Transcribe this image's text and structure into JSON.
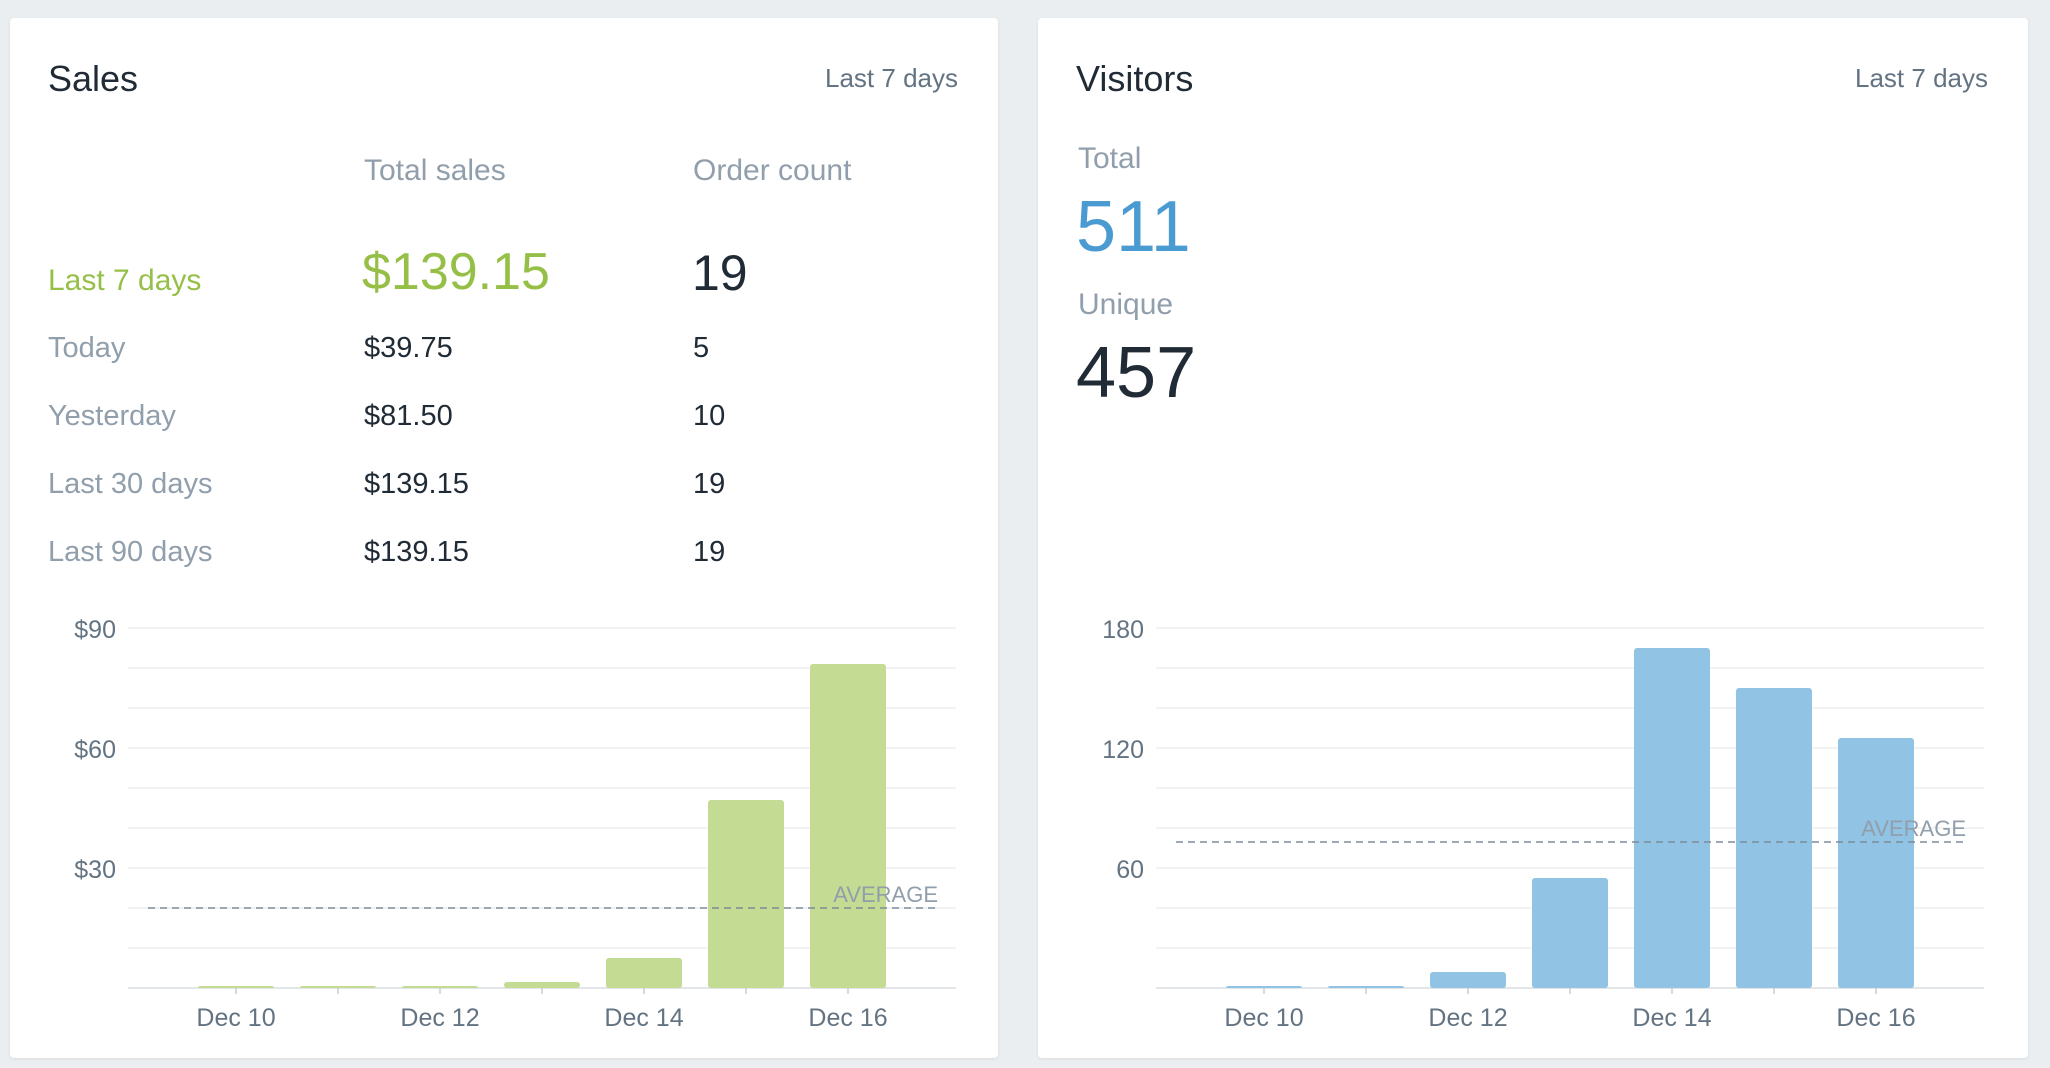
{
  "sales": {
    "title": "Sales",
    "range_link": "Last 7 days",
    "col_total_sales": "Total sales",
    "col_order_count": "Order count",
    "rows": [
      {
        "label": "Last 7 days",
        "total": "$139.15",
        "count": "19"
      },
      {
        "label": "Today",
        "total": "$39.75",
        "count": "5"
      },
      {
        "label": "Yesterday",
        "total": "$81.50",
        "count": "10"
      },
      {
        "label": "Last 30 days",
        "total": "$139.15",
        "count": "19"
      },
      {
        "label": "Last 90 days",
        "total": "$139.15",
        "count": "19"
      }
    ]
  },
  "visitors": {
    "title": "Visitors",
    "range_link": "Last 7 days",
    "total_label": "Total",
    "total_value": "511",
    "unique_label": "Unique",
    "unique_value": "457"
  },
  "colors": {
    "sales_accent": "#96bf48",
    "sales_bar": "#c3db92",
    "visitors_accent": "#4a9bd1",
    "visitors_bar": "#90c3e4"
  },
  "chart_data": [
    {
      "type": "bar",
      "categories": [
        "Dec 10",
        "Dec 11",
        "Dec 12",
        "Dec 13",
        "Dec 14",
        "Dec 15",
        "Dec 16"
      ],
      "x_tick_labels": [
        "Dec 10",
        "Dec 12",
        "Dec 14",
        "Dec 16"
      ],
      "values": [
        0.5,
        0.5,
        0.5,
        1.5,
        7.5,
        47,
        81
      ],
      "y_tick_labels": [
        "$30",
        "$60",
        "$90"
      ],
      "y_ticks": [
        30,
        60,
        90
      ],
      "ylim": [
        0,
        90
      ],
      "average": 20,
      "average_label": "AVERAGE",
      "grid": true
    },
    {
      "type": "bar",
      "categories": [
        "Dec 10",
        "Dec 11",
        "Dec 12",
        "Dec 13",
        "Dec 14",
        "Dec 15",
        "Dec 16"
      ],
      "x_tick_labels": [
        "Dec 10",
        "Dec 12",
        "Dec 14",
        "Dec 16"
      ],
      "values": [
        1,
        1,
        8,
        55,
        170,
        150,
        125
      ],
      "y_tick_labels": [
        "60",
        "120",
        "180"
      ],
      "y_ticks": [
        60,
        120,
        180
      ],
      "ylim": [
        0,
        180
      ],
      "average": 73,
      "average_label": "AVERAGE",
      "grid": true
    }
  ]
}
